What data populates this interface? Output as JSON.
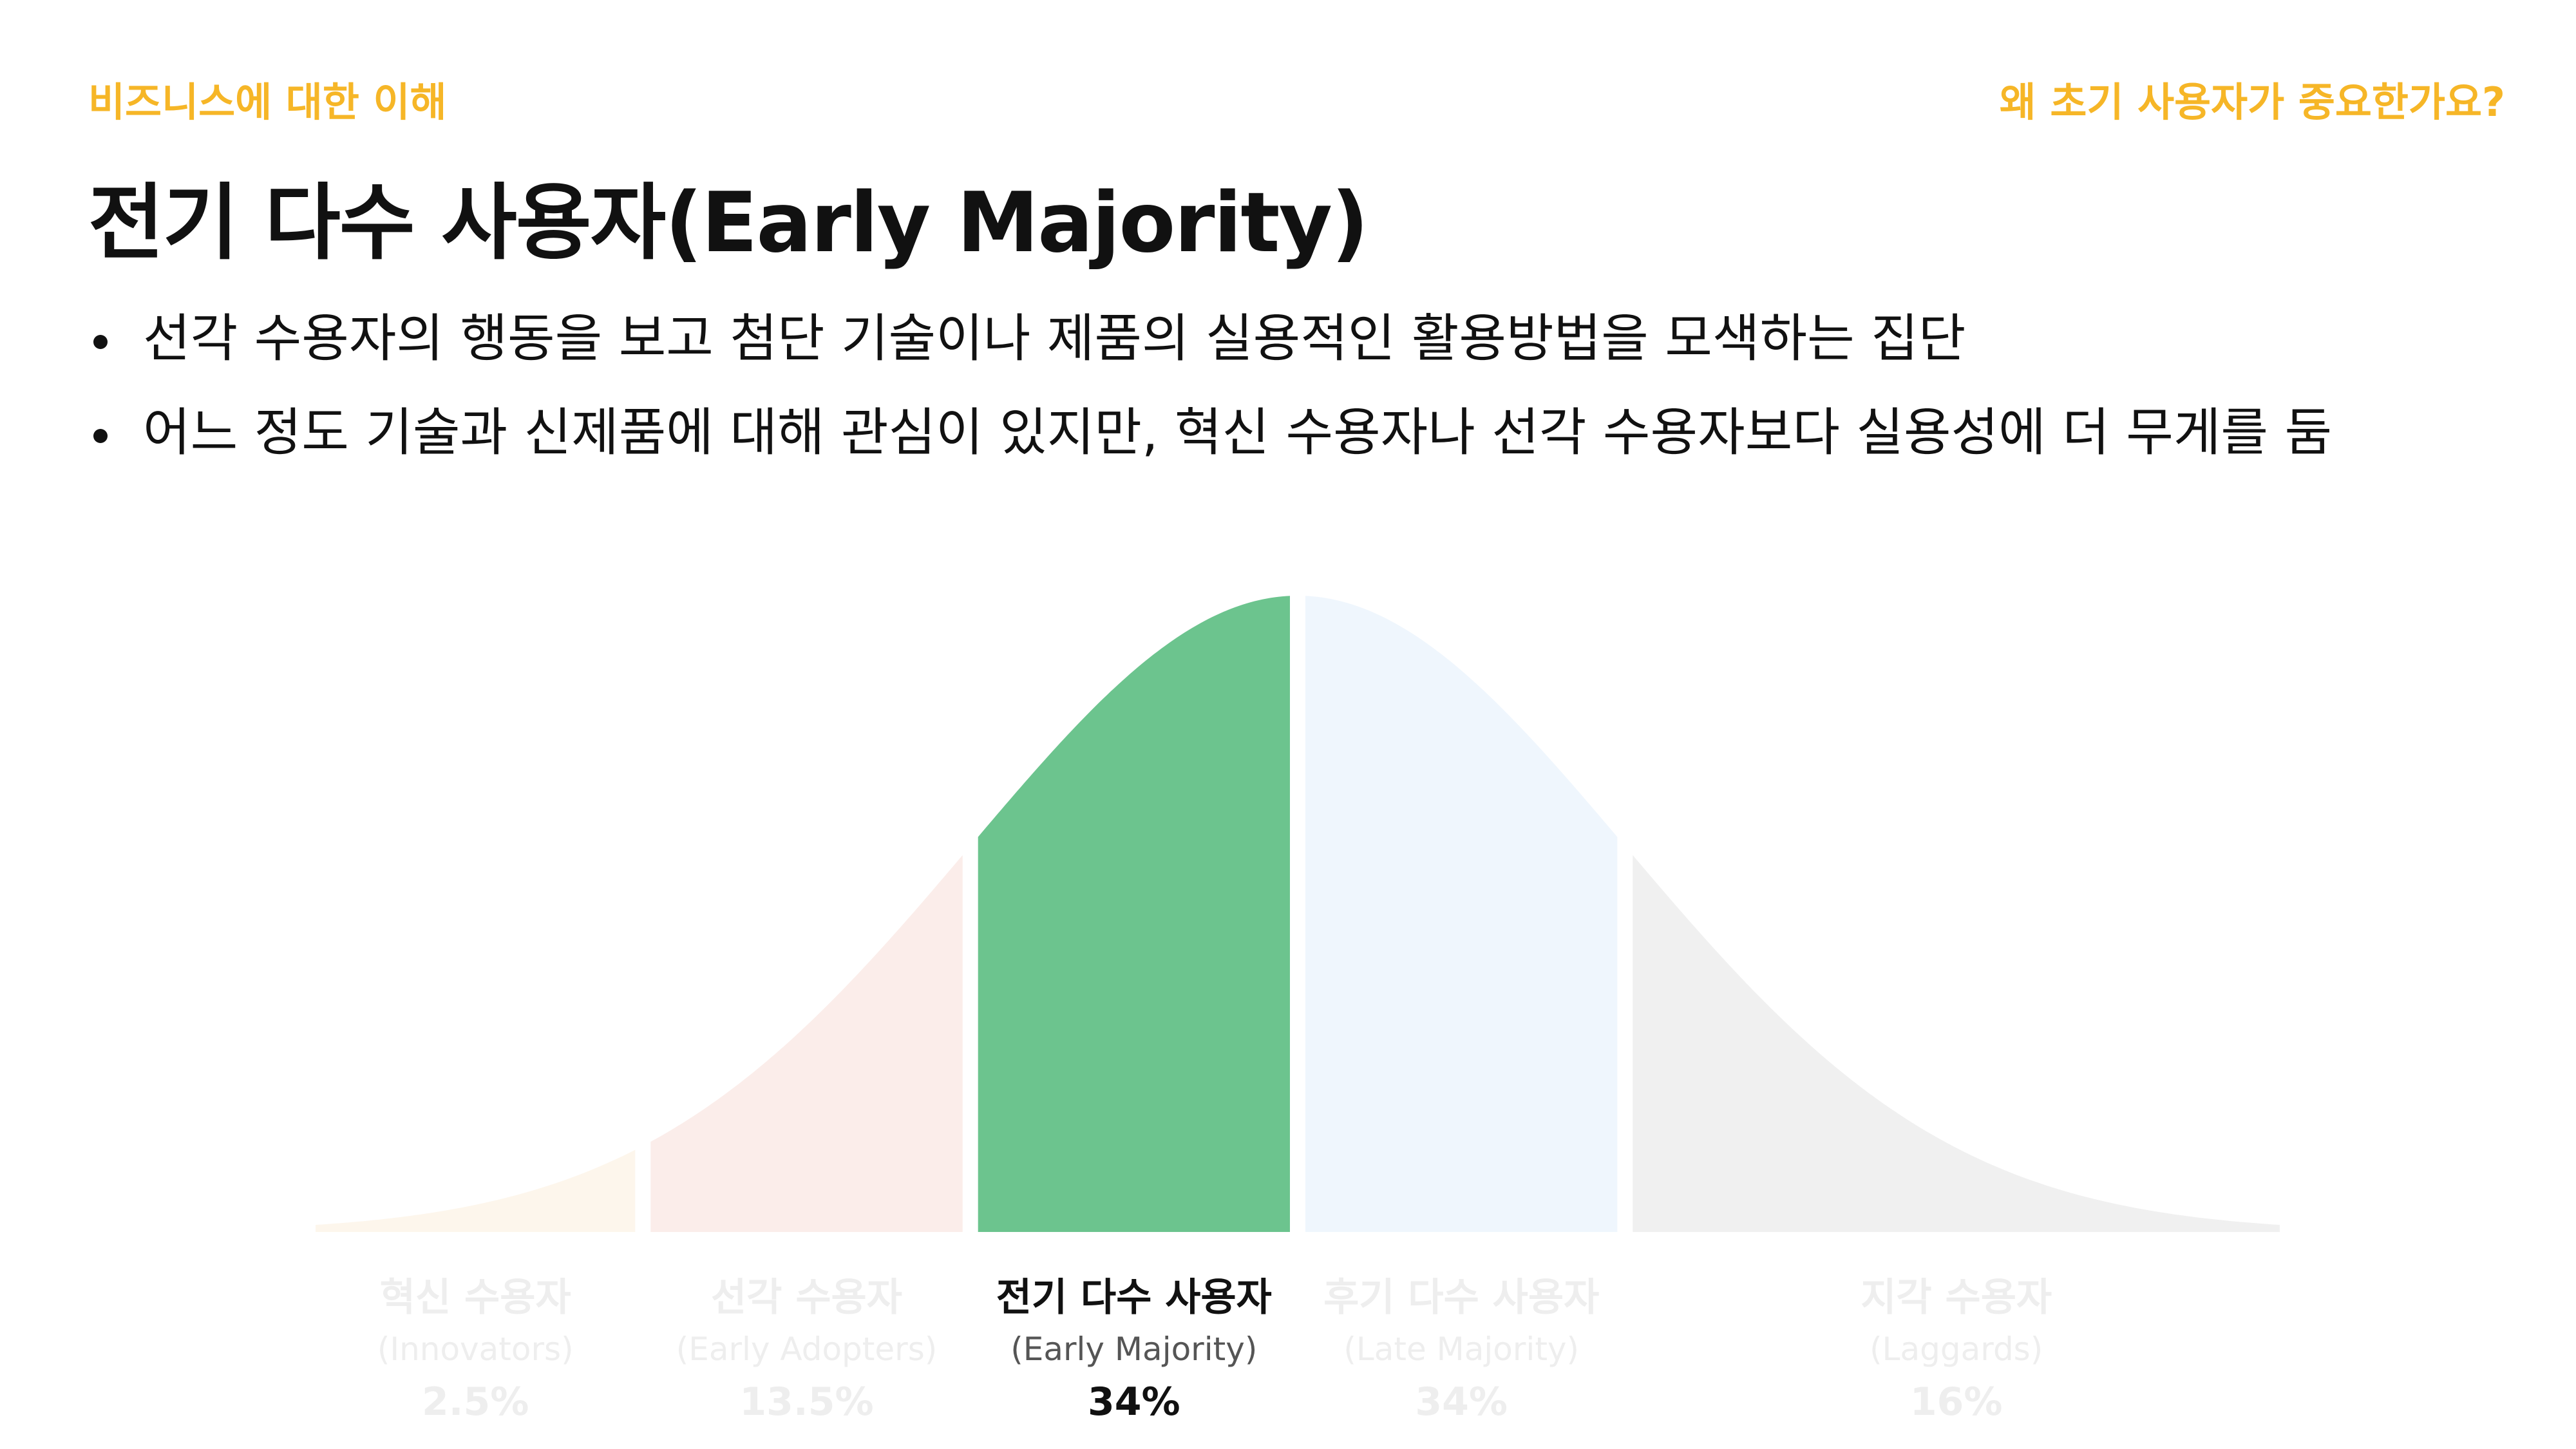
{
  "header": {
    "section": "비즈니스에 대한 이해",
    "topic": "왜 초기 사용자가 중요한가요?"
  },
  "title": "전기 다수 사용자(Early Majority)",
  "bullets": [
    "선각 수용자의 행동을 보고 첨단 기술이나 제품의 실용적인 활용방법을 모색하는 집단",
    "어느 정도 기술과 신제품에 대해 관심이 있지만, 혁신 수용자나 선각 수용자보다 실용성에 더 무게를 둠"
  ],
  "chart_data": {
    "type": "area",
    "title": "",
    "xlabel": "",
    "ylabel": "",
    "categories": [
      {
        "name": "혁신 수용자",
        "sub": "(Innovators)",
        "percent_label": "2.5%",
        "value": 2.5,
        "color": "#FDF6EC",
        "highlighted": false
      },
      {
        "name": "선각 수용자",
        "sub": "(Early Adopters)",
        "percent_label": "13.5%",
        "value": 13.5,
        "color": "#FBEDEA",
        "highlighted": false
      },
      {
        "name": "전기 다수 사용자",
        "sub": "(Early Majority)",
        "percent_label": "34%",
        "value": 34,
        "color": "#6CC48E",
        "highlighted": true
      },
      {
        "name": "후기 다수 사용자",
        "sub": "(Late Majority)",
        "percent_label": "34%",
        "value": 34,
        "color": "#EFF6FD",
        "highlighted": false
      },
      {
        "name": "지각 수용자",
        "sub": "(Laggards)",
        "percent_label": "16%",
        "value": 16,
        "color": "#F0F0F0",
        "highlighted": false
      }
    ],
    "distribution": "normal",
    "boundaries_sd": [
      -2,
      -1,
      0,
      1
    ],
    "x_range_sd": [
      -3,
      3
    ],
    "label_colors": {
      "highlighted_name": "#111111",
      "highlighted_sub": "#555555",
      "muted": "#EEEEEE"
    }
  }
}
